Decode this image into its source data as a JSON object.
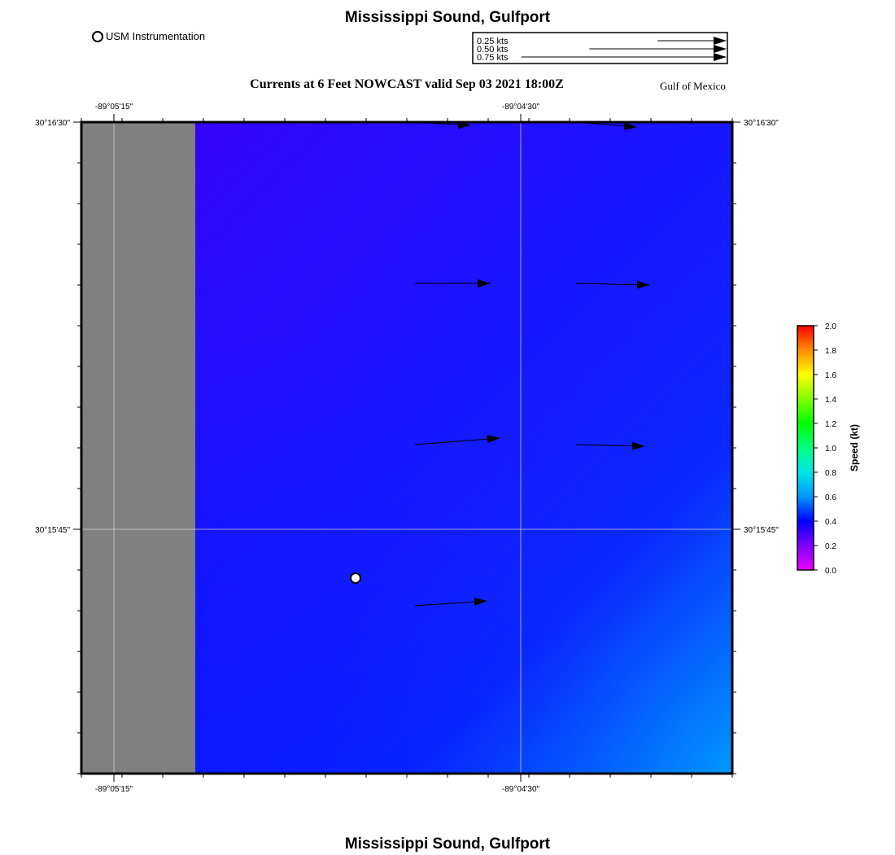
{
  "header": {
    "title": "Mississippi Sound, Gulfport",
    "footer_title": "Mississippi Sound, Gulfport",
    "subtitle": "Currents at 6 Feet NOWCAST valid Sep 03 2021 18:00Z",
    "region": "Gulf of Mexico"
  },
  "legend": {
    "station_label": "USM Instrumentation",
    "scale_arrows": [
      {
        "label": "0.25 kts",
        "speed_kt": 0.25
      },
      {
        "label": "0.50 kts",
        "speed_kt": 0.5
      },
      {
        "label": "0.75 kts",
        "speed_kt": 0.75
      }
    ]
  },
  "map": {
    "lon_ticks": [
      "-89°05'15\"",
      "-89°04'30\""
    ],
    "lat_ticks": [
      "30°16'30\"",
      "30°15'45\""
    ],
    "land_color": "#808080",
    "station": {
      "name": "USM Instrumentation"
    },
    "current_vectors": [
      {
        "row": 1,
        "col": 1,
        "u_kt": 0.34,
        "v_kt": -0.02
      },
      {
        "row": 1,
        "col": 2,
        "u_kt": 0.37,
        "v_kt": -0.03
      },
      {
        "row": 2,
        "col": 1,
        "u_kt": 0.46,
        "v_kt": 0.0
      },
      {
        "row": 2,
        "col": 2,
        "u_kt": 0.45,
        "v_kt": -0.01
      },
      {
        "row": 3,
        "col": 1,
        "u_kt": 0.52,
        "v_kt": 0.04
      },
      {
        "row": 3,
        "col": 2,
        "u_kt": 0.42,
        "v_kt": -0.01
      },
      {
        "row": 4,
        "col": 1,
        "u_kt": 0.44,
        "v_kt": 0.03
      }
    ]
  },
  "colorbar": {
    "label": "Speed (kt)",
    "ticks": [
      "2.0",
      "1.8",
      "1.6",
      "1.4",
      "1.2",
      "1.0",
      "0.8",
      "0.6",
      "0.4",
      "0.2",
      "0.0"
    ],
    "min": 0.0,
    "max": 2.0
  }
}
